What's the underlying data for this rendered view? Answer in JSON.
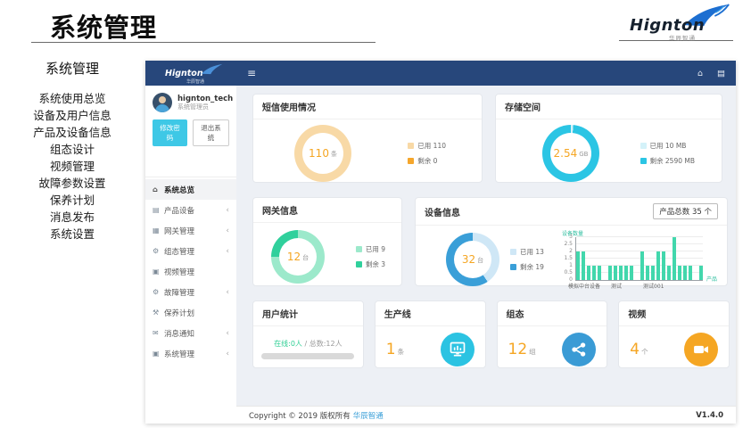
{
  "page": {
    "title": "系统管理"
  },
  "brand": {
    "name": "Hignton",
    "subtitle": "华辰智通"
  },
  "outer_nav": {
    "title": "系统管理",
    "items": [
      "系统使用总览",
      "设备及用户信息",
      "产品及设备信息",
      "组态设计",
      "视频管理",
      "故障参数设置",
      "保养计划",
      "消息发布",
      "系统设置"
    ]
  },
  "app": {
    "topbar": {
      "menu_icon": "≡",
      "home_icon": "⌂",
      "file_icon": "▤"
    },
    "user": {
      "name": "hignton_tech",
      "role": "系统管理员",
      "change_password_label": "修改密码",
      "logout_label": "退出系统"
    },
    "sidebar": {
      "chevron_glyph": "‹",
      "items": [
        {
          "id": "overview",
          "label": "系统总览",
          "icon": "home-icon",
          "glyph": "⌂",
          "active": true,
          "chevron": false
        },
        {
          "id": "product-device",
          "label": "产品设备",
          "icon": "product-icon",
          "glyph": "▤",
          "active": false,
          "chevron": true
        },
        {
          "id": "gateway",
          "label": "网关管理",
          "icon": "gateway-icon",
          "glyph": "▦",
          "active": false,
          "chevron": true
        },
        {
          "id": "scada",
          "label": "组态管理",
          "icon": "gears-icon",
          "glyph": "⚙",
          "active": false,
          "chevron": true
        },
        {
          "id": "video",
          "label": "视频管理",
          "icon": "monitor-icon",
          "glyph": "▣",
          "active": false,
          "chevron": false
        },
        {
          "id": "fault",
          "label": "故障管理",
          "icon": "gears-icon",
          "glyph": "⚙",
          "active": false,
          "chevron": true
        },
        {
          "id": "maintenance",
          "label": "保养计划",
          "icon": "wrench-icon",
          "glyph": "⚒",
          "active": false,
          "chevron": false
        },
        {
          "id": "message",
          "label": "消息通知",
          "icon": "book-icon",
          "glyph": "✉",
          "active": false,
          "chevron": true
        },
        {
          "id": "system",
          "label": "系统管理",
          "icon": "monitor-icon",
          "glyph": "▣",
          "active": false,
          "chevron": true
        }
      ]
    },
    "cards": {
      "sms": {
        "title": "短信使用情况"
      },
      "storage": {
        "title": "存储空间"
      },
      "gateway": {
        "title": "网关信息"
      },
      "device": {
        "title": "设备信息",
        "total_button": "产品总数 35 个"
      },
      "users": {
        "title": "用户统计",
        "online": "在线:0人",
        "total": "/ 总数:12人"
      },
      "production": {
        "title": "生产线",
        "value": "1",
        "unit": "条"
      },
      "scada": {
        "title": "组态",
        "value": "12",
        "unit": "组"
      },
      "video": {
        "title": "视频",
        "value": "4",
        "unit": "个"
      }
    },
    "footer": {
      "copyright": "Copyright © 2019 版权所有",
      "company": "华辰智通",
      "version": "V1.4.0"
    }
  },
  "colors": {
    "navy": "#27477b",
    "accent_orange": "#f5a623",
    "cyan": "#2bc3e2",
    "teal": "#42d7ac",
    "green": "#2fcf95",
    "blue": "#3a9bd5"
  },
  "chart_data": [
    {
      "id": "sms-usage",
      "type": "pie",
      "title": "短信使用情况",
      "center_value": "110",
      "center_unit": "条",
      "segments": [
        {
          "label": "已用 110",
          "value": 110,
          "color": "#f8d9a6"
        },
        {
          "label": "剩余 0",
          "value": 0,
          "color": "#f5a62c"
        }
      ]
    },
    {
      "id": "storage-space",
      "type": "pie",
      "title": "存储空间",
      "center_value": "2.54",
      "center_unit": "GB",
      "segments": [
        {
          "label": "已用 10 MB",
          "value": 10,
          "color": "#d4f2f9"
        },
        {
          "label": "剩余 2590 MB",
          "value": 2590,
          "color": "#2bc5e4"
        }
      ]
    },
    {
      "id": "gateway-info",
      "type": "pie",
      "title": "网关信息",
      "center_value": "12",
      "center_unit": "台",
      "segments": [
        {
          "label": "已用 9",
          "value": 9,
          "color": "#9ce9cb"
        },
        {
          "label": "剩余 3",
          "value": 3,
          "color": "#30d09c"
        }
      ]
    },
    {
      "id": "device-info",
      "type": "pie",
      "title": "设备信息",
      "center_value": "32",
      "center_unit": "台",
      "segments": [
        {
          "label": "已用 13",
          "value": 13,
          "color": "#cfe7f6"
        },
        {
          "label": "剩余 19",
          "value": 19,
          "color": "#3a9fd8"
        }
      ]
    },
    {
      "id": "device-count-by-product",
      "type": "bar",
      "ylabel": "设备数量",
      "xlabel": "产品",
      "ylim": [
        0,
        3
      ],
      "yticks": [
        0,
        0.5,
        1,
        1.5,
        2,
        2.5,
        3
      ],
      "x_tick_labels": [
        "模拟中台设备",
        "测试",
        "测试001"
      ],
      "values": [
        2,
        2,
        1,
        1,
        1,
        0,
        1,
        1,
        1,
        1,
        1,
        0,
        2,
        1,
        1,
        2,
        2,
        1,
        3,
        1,
        1,
        1,
        0,
        1
      ],
      "bar_color": "#42d7ac",
      "grid": true
    }
  ]
}
